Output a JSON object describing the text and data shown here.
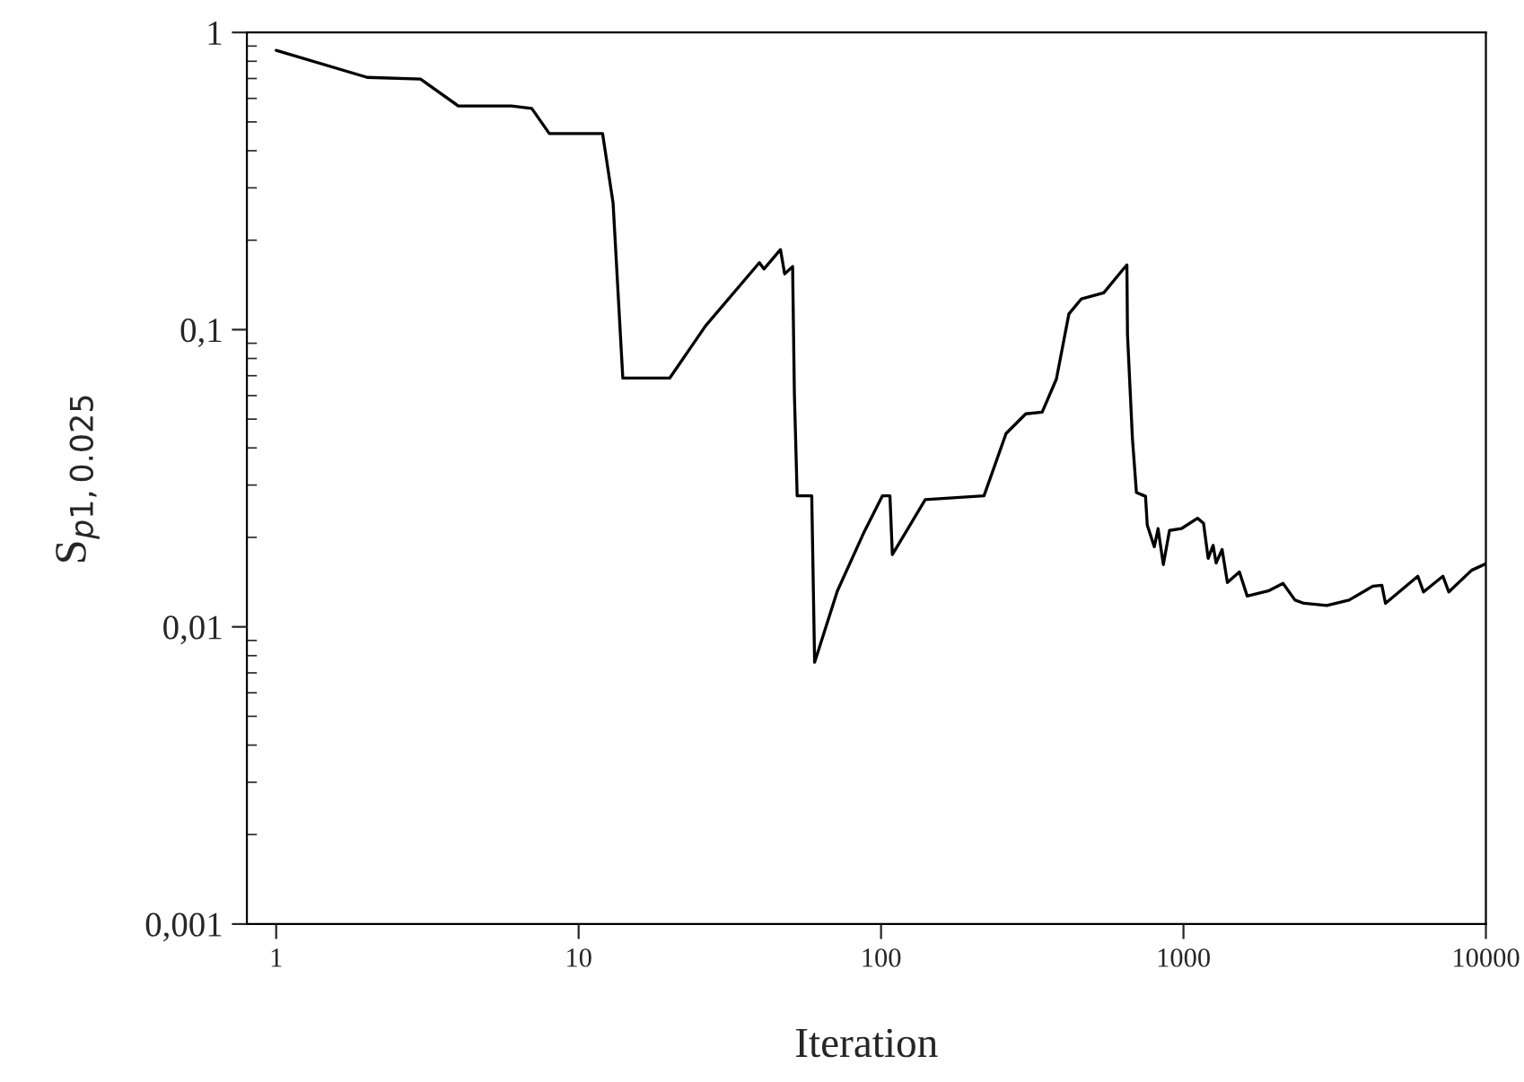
{
  "chart_data": {
    "type": "line",
    "xlabel": "Iteration",
    "ylabel": "S$_{p1,0.025}$",
    "log": "xy",
    "grid": false,
    "legend": false,
    "marker": "none",
    "line_style": "solid",
    "xlim": [
      0.8,
      10000
    ],
    "ylim": [
      0.001,
      1
    ],
    "xticks": [
      1,
      10,
      100,
      1000,
      10000
    ],
    "yticks": [
      {
        "value": 0.001,
        "label": "0,001"
      },
      {
        "value": 0.01,
        "label": "0,01"
      },
      {
        "value": 0.1,
        "label": "0,1"
      },
      1
    ],
    "series": [
      {
        "color": "#000000",
        "x": [
          1,
          2,
          3,
          4,
          6,
          7,
          8,
          12,
          13,
          14,
          20,
          26.3,
          39.6,
          41,
          46.5,
          48,
          51,
          51.7,
          52.8,
          59,
          60.3,
          71.7,
          88,
          101,
          107,
          109,
          140,
          219,
          259,
          301,
          341,
          380,
          418,
          460,
          545,
          633,
          650,
          653,
          678,
          699,
          749,
          759,
          801,
          824,
          858,
          899,
          984,
          1113,
          1165,
          1207,
          1253,
          1282,
          1342,
          1397,
          1531,
          1624,
          1906,
          2134,
          2338,
          2504,
          2978,
          3527,
          4227,
          4529,
          4655,
          5956,
          6220,
          7210,
          7540,
          8970,
          10000
        ],
        "values": [
          0.87,
          0.706,
          0.697,
          0.566,
          0.566,
          0.555,
          0.457,
          0.457,
          0.267,
          0.0687,
          0.0687,
          0.103,
          0.168,
          0.16,
          0.186,
          0.154,
          0.163,
          0.0607,
          0.0276,
          0.0276,
          0.0076,
          0.0132,
          0.0209,
          0.0276,
          0.0276,
          0.0175,
          0.0268,
          0.0276,
          0.0447,
          0.0521,
          0.0528,
          0.0682,
          0.113,
          0.127,
          0.133,
          0.16,
          0.165,
          0.0962,
          0.043,
          0.0283,
          0.0275,
          0.022,
          0.0186,
          0.0214,
          0.0162,
          0.0211,
          0.0214,
          0.0232,
          0.0223,
          0.017,
          0.0188,
          0.0164,
          0.0182,
          0.0141,
          0.0153,
          0.0127,
          0.0132,
          0.014,
          0.0123,
          0.012,
          0.0118,
          0.0123,
          0.0137,
          0.0138,
          0.012,
          0.0148,
          0.0131,
          0.0148,
          0.0131,
          0.0155,
          0.0163
        ]
      }
    ]
  }
}
